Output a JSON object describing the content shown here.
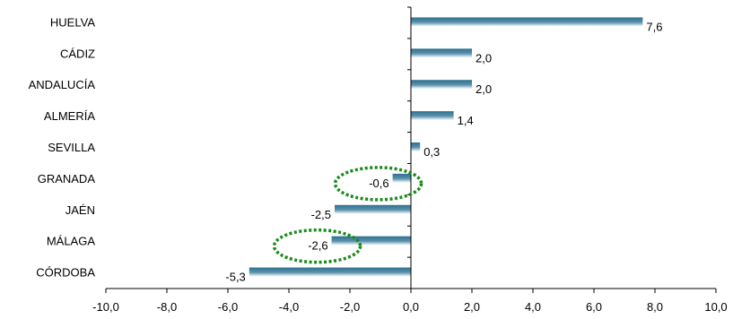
{
  "chart_data": {
    "type": "bar",
    "orientation": "horizontal",
    "categories": [
      "HUELVA",
      "CÁDIZ",
      "ANDALUCÍA",
      "ALMERÍA",
      "SEVILLA",
      "GRANADA",
      "JAÉN",
      "MÁLAGA",
      "CÓRDOBA"
    ],
    "values": [
      7.6,
      2.0,
      2.0,
      1.4,
      0.3,
      -0.6,
      -2.5,
      -2.6,
      -5.3
    ],
    "data_labels": [
      "7,6",
      "2,0",
      "2,0",
      "1,4",
      "0,3",
      "-0,6",
      "-2,5",
      "-2,6",
      "-5,3"
    ],
    "xlim": [
      -10,
      10
    ],
    "x_ticks": [
      -10,
      -8,
      -6,
      -4,
      -2,
      0,
      2,
      4,
      6,
      8,
      10
    ],
    "x_tick_labels": [
      "-10,0",
      "-8,0",
      "-6,0",
      "-4,0",
      "-2,0",
      "0,0",
      "2,0",
      "4,0",
      "6,0",
      "8,0",
      "10,0"
    ],
    "highlighted_categories": [
      "GRANADA",
      "MÁLAGA"
    ],
    "bar_color_dark": "#2e6f8e",
    "bar_color_light": "#ffffff",
    "highlight_color": "#1a8a1a",
    "grid": false,
    "legend": "none",
    "title": "",
    "xlabel": "",
    "ylabel": ""
  }
}
